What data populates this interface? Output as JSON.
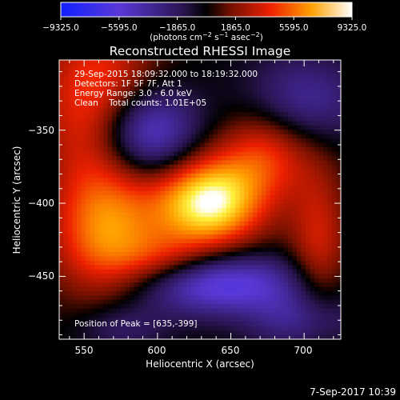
{
  "colorbar": {
    "ticks": [
      "−9325.0",
      "−5595.0",
      "−1865.0",
      "1865.0",
      "5595.0",
      "9325.0"
    ],
    "range": [
      -9325,
      9325
    ],
    "units": "(photons cm",
    "units_sup1": "−2",
    "units_mid": " s",
    "units_sup2": "−1",
    "units_mid2": " asec",
    "units_sup3": "−2",
    "units_end": ")"
  },
  "footer": {
    "timestamp": "7-Sep-2017 10:39"
  },
  "chart_data": {
    "type": "heatmap",
    "title": "Reconstructed RHESSI Image",
    "xlabel": "Heliocentric X (arcsec)",
    "ylabel": "Heliocentric Y (arcsec)",
    "xlim": [
      533,
      725
    ],
    "ylim": [
      -493,
      -302
    ],
    "x_ticks": [
      "550",
      "600",
      "650",
      "700"
    ],
    "y_ticks": [
      "−350",
      "−400",
      "−450"
    ],
    "x_tick_values": [
      550,
      600,
      650,
      700
    ],
    "y_tick_values": [
      -350,
      -400,
      -450
    ],
    "colormap": "RHESSI blue-black-red-yellow-white",
    "annotations": [
      "29-Sep-2015 18:09:32.000 to 18:19:32.000",
      "Detectors: 1F 5F 7F, Att 1",
      "Energy Range: 3.0 - 6.0 keV",
      "Clean    Total counts: 1.01E+05"
    ],
    "peak_label": "Position of Peak = [635,-399]",
    "peak": [
      635,
      -399
    ],
    "sources": [
      {
        "x": 635,
        "y": -399,
        "amp": 9300,
        "sx": 26,
        "sy": 22
      },
      {
        "x": 560,
        "y": -330,
        "amp": 5200,
        "sx": 28,
        "sy": 40
      },
      {
        "x": 565,
        "y": -420,
        "amp": 6000,
        "sx": 26,
        "sy": 34
      },
      {
        "x": 675,
        "y": -365,
        "amp": 4200,
        "sx": 22,
        "sy": 22
      },
      {
        "x": 605,
        "y": -440,
        "amp": 3000,
        "sx": 24,
        "sy": 14
      },
      {
        "x": 710,
        "y": -430,
        "amp": 3500,
        "sx": 14,
        "sy": 40
      },
      {
        "x": 592,
        "y": -352,
        "amp": -7000,
        "sx": 24,
        "sy": 22
      },
      {
        "x": 640,
        "y": -455,
        "amp": -6500,
        "sx": 42,
        "sy": 15
      },
      {
        "x": 700,
        "y": -330,
        "amp": -3800,
        "sx": 28,
        "sy": 22
      },
      {
        "x": 700,
        "y": -480,
        "amp": -3500,
        "sx": 26,
        "sy": 14
      },
      {
        "x": 575,
        "y": -485,
        "amp": -2500,
        "sx": 22,
        "sy": 12
      }
    ]
  }
}
